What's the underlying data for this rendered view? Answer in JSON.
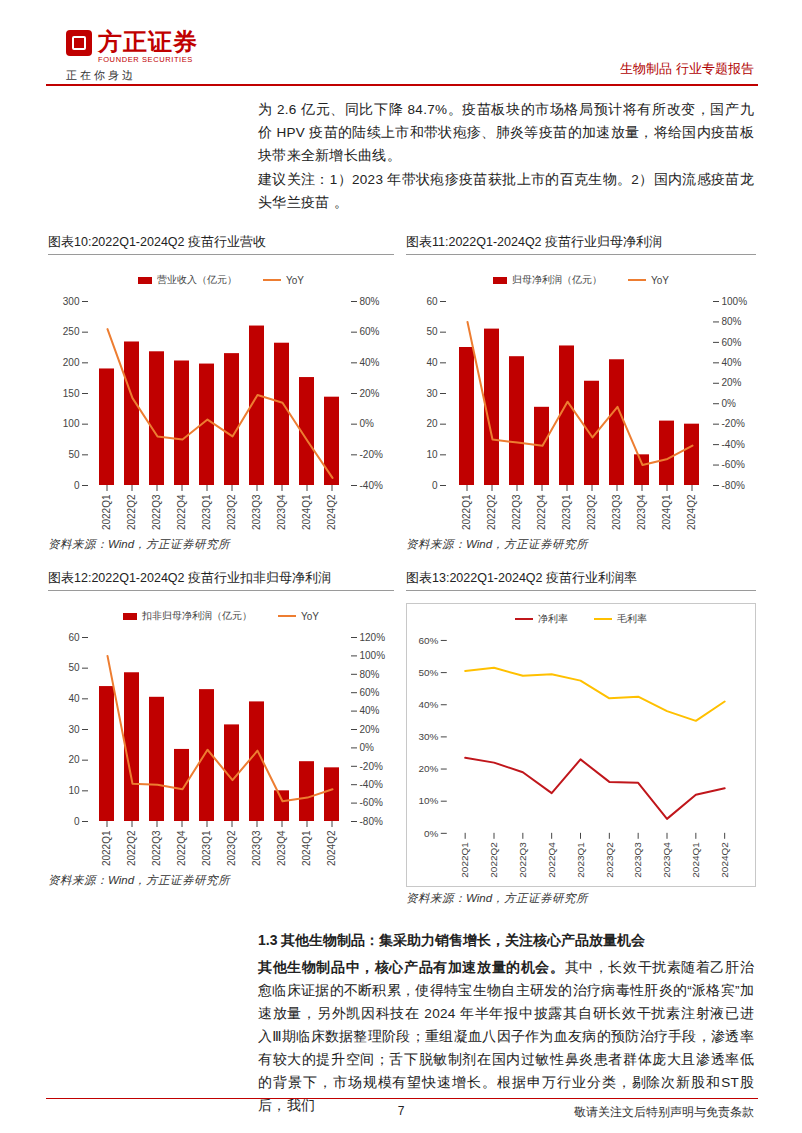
{
  "header": {
    "logo_cn": "方正证券",
    "logo_en": "FOUNDER SECURITIES",
    "slogan": "正 在 你 身 边",
    "report_type": "生物制品 行业专题报告"
  },
  "paragraphs": [
    "为 2.6 亿元、同比下降 84.7%。疫苗板块的市场格局预计将有所改变，国产九价 HPV 疫苗的陆续上市和带状疱疹、肺炎等疫苗的加速放量，将给国内疫苗板块带来全新增长曲线。",
    "建议关注：1）2023 年带状疱疹疫苗获批上市的百克生物。2）国内流感疫苗龙头华兰疫苗 。"
  ],
  "chart_data": [
    {
      "type": "bar",
      "title": "图表10:2022Q1-2024Q2 疫苗行业营收",
      "source": "资料来源：Wind，方正证券研究所",
      "categories": [
        "2022Q1",
        "2022Q2",
        "2022Q3",
        "2022Q4",
        "2023Q1",
        "2023Q2",
        "2023Q3",
        "2023Q4",
        "2024Q1",
        "2024Q2"
      ],
      "series": [
        {
          "name": "营业收入（亿元）",
          "type": "bar",
          "color": "#C00000",
          "values": [
            190,
            234,
            218,
            203,
            198,
            215,
            260,
            232,
            176,
            144
          ]
        },
        {
          "name": "YoY",
          "type": "line",
          "axis": "y2",
          "color": "#ED7D31",
          "values": [
            62,
            17,
            -8,
            -10,
            3,
            -8,
            19,
            14,
            -11,
            -35
          ]
        }
      ],
      "ylim": [
        0,
        300
      ],
      "yticks": [
        0,
        50,
        100,
        150,
        200,
        250,
        300
      ],
      "y2lim": [
        -40,
        80
      ],
      "y2ticks": [
        {
          "value": -40,
          "label": "-40%"
        },
        {
          "value": -20,
          "label": "-20%"
        },
        {
          "value": 0,
          "label": "0%"
        },
        {
          "value": 20,
          "label": "20%"
        },
        {
          "value": 40,
          "label": "40%"
        },
        {
          "value": 60,
          "label": "60%"
        },
        {
          "value": 80,
          "label": "80%"
        }
      ]
    },
    {
      "type": "bar",
      "title": "图表11:2022Q1-2024Q2 疫苗行业归母净利润",
      "source": "资料来源：Wind，方正证券研究所",
      "categories": [
        "2022Q1",
        "2022Q2",
        "2022Q3",
        "2022Q4",
        "2023Q1",
        "2023Q2",
        "2023Q3",
        "2023Q4",
        "2024Q1",
        "2024Q2"
      ],
      "series": [
        {
          "name": "归母净利润（亿元）",
          "type": "bar",
          "color": "#C00000",
          "values": [
            45,
            51,
            42,
            25.5,
            45.5,
            34,
            41,
            10,
            21,
            20
          ]
        },
        {
          "name": "YoY",
          "type": "line",
          "axis": "y2",
          "color": "#ED7D31",
          "values": [
            80,
            -35,
            -38,
            -41,
            2,
            -33,
            -3,
            -60,
            -54,
            -41
          ]
        }
      ],
      "ylim": [
        0,
        60
      ],
      "yticks": [
        0,
        10,
        20,
        30,
        40,
        50,
        60
      ],
      "y2lim": [
        -80,
        100
      ],
      "y2ticks": [
        {
          "value": -80,
          "label": "-80%"
        },
        {
          "value": -60,
          "label": "-60%"
        },
        {
          "value": -40,
          "label": "-40%"
        },
        {
          "value": -20,
          "label": "-20%"
        },
        {
          "value": 0,
          "label": "0%"
        },
        {
          "value": 20,
          "label": "20%"
        },
        {
          "value": 40,
          "label": "40%"
        },
        {
          "value": 60,
          "label": "60%"
        },
        {
          "value": 80,
          "label": "80%"
        },
        {
          "value": 100,
          "label": "100%"
        }
      ]
    },
    {
      "type": "bar",
      "title": "图表12:2022Q1-2024Q2 疫苗行业扣非归母净利润",
      "source": "资料来源：Wind，方正证券研究所",
      "categories": [
        "2022Q1",
        "2022Q2",
        "2022Q3",
        "2022Q4",
        "2023Q1",
        "2023Q2",
        "2023Q3",
        "2023Q4",
        "2024Q1",
        "2024Q2"
      ],
      "series": [
        {
          "name": "扣非归母净利润（亿元）",
          "type": "bar",
          "color": "#C00000",
          "values": [
            44,
            48.5,
            40.5,
            23.5,
            43,
            31.5,
            39,
            10,
            19.5,
            17.5
          ]
        },
        {
          "name": "YoY",
          "type": "line",
          "axis": "y2",
          "color": "#ED7D31",
          "values": [
            100,
            -39,
            -40,
            -45,
            -2,
            -35,
            -3,
            -58,
            -54,
            -45
          ]
        }
      ],
      "ylim": [
        0,
        60
      ],
      "yticks": [
        0,
        10,
        20,
        30,
        40,
        50,
        60
      ],
      "y2lim": [
        -80,
        120
      ],
      "y2ticks": [
        {
          "value": -80,
          "label": "-80%"
        },
        {
          "value": -60,
          "label": "-60%"
        },
        {
          "value": -40,
          "label": "-40%"
        },
        {
          "value": -20,
          "label": "-20%"
        },
        {
          "value": 0,
          "label": "0%"
        },
        {
          "value": 20,
          "label": "20%"
        },
        {
          "value": 40,
          "label": "40%"
        },
        {
          "value": 60,
          "label": "60%"
        },
        {
          "value": 80,
          "label": "80%"
        },
        {
          "value": 100,
          "label": "100%"
        },
        {
          "value": 120,
          "label": "120%"
        }
      ]
    },
    {
      "type": "line",
      "title": "图表13:2022Q1-2024Q2 疫苗行业利润率",
      "source": "资料来源：Wind，方正证券研究所",
      "categories": [
        "2022Q1",
        "2022Q2",
        "2022Q3",
        "2022Q4",
        "2023Q1",
        "2023Q2",
        "2023Q3",
        "2023Q4",
        "2024Q1",
        "2024Q2"
      ],
      "series": [
        {
          "name": "净利率",
          "type": "line",
          "color": "#C0161B",
          "values": [
            23.5,
            22,
            19,
            12.5,
            23,
            16,
            15.7,
            4.5,
            12,
            14
          ]
        },
        {
          "name": "毛利率",
          "type": "line",
          "color": "#FFC000",
          "values": [
            50.5,
            51.5,
            49,
            49.5,
            47.5,
            42,
            42.5,
            38,
            35,
            41
          ]
        }
      ],
      "ylim": [
        0,
        60
      ],
      "yticks": [
        {
          "value": 0,
          "label": "0%"
        },
        {
          "value": 10,
          "label": "10%"
        },
        {
          "value": 20,
          "label": "20%"
        },
        {
          "value": 30,
          "label": "30%"
        },
        {
          "value": 40,
          "label": "40%"
        },
        {
          "value": 50,
          "label": "50%"
        },
        {
          "value": 60,
          "label": "60%"
        }
      ]
    }
  ],
  "section": {
    "heading": "1.3 其他生物制品：集采助力销售增长，关注核心产品放量机会",
    "lead": "其他生物制品中，核心产品有加速放量的机会。",
    "text": "其中，长效干扰素随着乙肝治愈临床证据的不断积累，使得特宝生物自主研发的治疗病毒性肝炎的“派格宾”加速放量，另外凯因科技在 2024 年半年报中披露其自研长效干扰素注射液已进入Ⅲ期临床数据整理阶段；重组凝血八因子作为血友病的预防治疗手段，渗透率有较大的提升空间；舌下脱敏制剂在国内过敏性鼻炎患者群体庞大且渗透率低的背景下，市场规模有望快速增长。根据申万行业分类，剔除次新股和ST股后，我们"
  },
  "footer": {
    "page": "7",
    "disclaimer": "敬请关注文后特别声明与免责条款"
  }
}
